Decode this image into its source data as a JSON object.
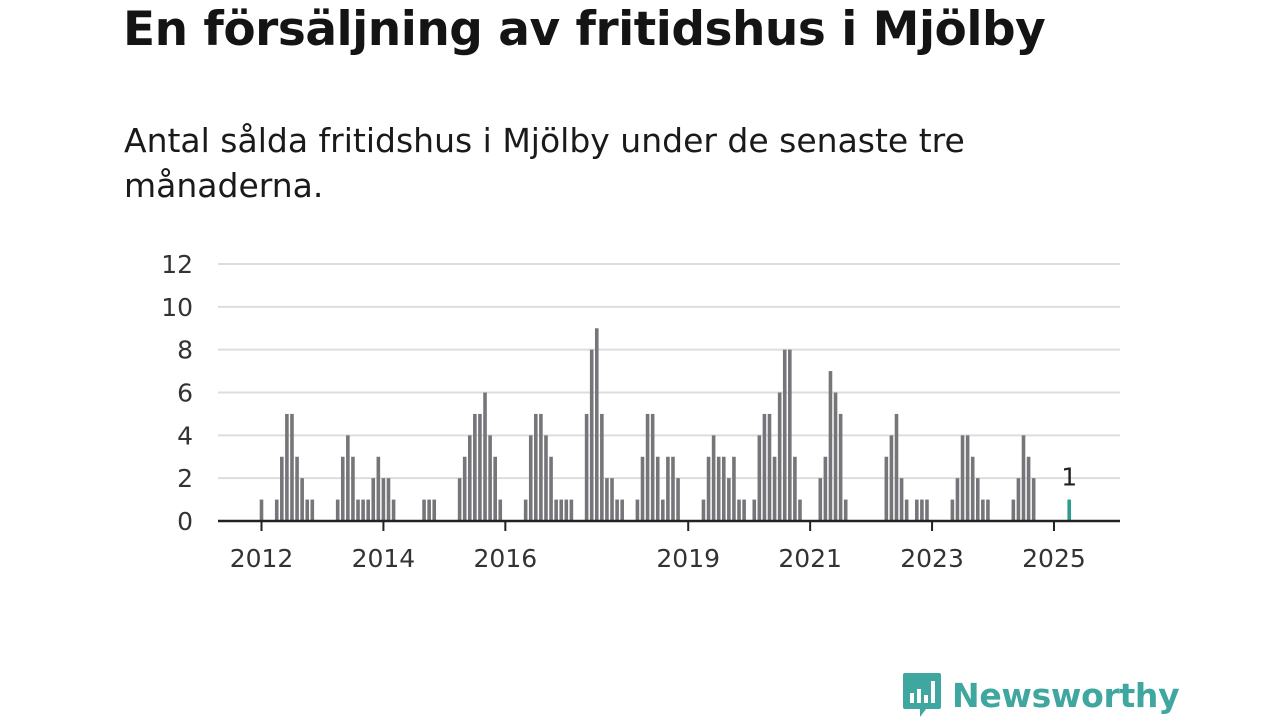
{
  "page": {
    "title": "En försäljning av fritidshus i Mjölby",
    "subtitle": "Antal sålda fritidshus i Mjölby under de senaste tre månaderna."
  },
  "logo": {
    "text": "Newsworthy",
    "icon": "newsworthy-logo-icon"
  },
  "colors": {
    "bar": "#76767a",
    "highlight": "#2a9d8f",
    "grid": "#dddddd",
    "axis": "#222222",
    "logo": "#3fa79f"
  },
  "chart_data": {
    "type": "bar",
    "title": "",
    "xlabel": "",
    "ylabel": "",
    "ylim": [
      0,
      12
    ],
    "yticks": [
      0,
      2,
      4,
      6,
      8,
      10,
      12
    ],
    "xticks": [
      {
        "label": "2012",
        "index": 0
      },
      {
        "label": "2014",
        "index": 24
      },
      {
        "label": "2016",
        "index": 48
      },
      {
        "label": "2019",
        "index": 84
      },
      {
        "label": "2021",
        "index": 108
      },
      {
        "label": "2023",
        "index": 132
      },
      {
        "label": "2025",
        "index": 156
      }
    ],
    "grid": true,
    "start_month": "2012-01",
    "end_month": "2025-04",
    "values": [
      1,
      0,
      0,
      1,
      3,
      5,
      5,
      3,
      2,
      1,
      1,
      0,
      0,
      0,
      0,
      1,
      3,
      4,
      3,
      1,
      1,
      1,
      2,
      3,
      2,
      2,
      1,
      0,
      0,
      0,
      0,
      0,
      1,
      1,
      1,
      0,
      0,
      0,
      0,
      2,
      3,
      4,
      5,
      5,
      6,
      4,
      3,
      1,
      0,
      0,
      0,
      0,
      1,
      4,
      5,
      5,
      4,
      3,
      1,
      1,
      1,
      1,
      0,
      0,
      5,
      8,
      9,
      5,
      2,
      2,
      1,
      1,
      0,
      0,
      1,
      3,
      5,
      5,
      3,
      1,
      3,
      3,
      2,
      0,
      0,
      0,
      0,
      1,
      3,
      4,
      3,
      3,
      2,
      3,
      1,
      1,
      0,
      1,
      4,
      5,
      5,
      3,
      6,
      8,
      8,
      3,
      1,
      0,
      0,
      0,
      2,
      3,
      7,
      6,
      5,
      1,
      0,
      0,
      0,
      0,
      0,
      0,
      0,
      3,
      4,
      5,
      2,
      1,
      0,
      1,
      1,
      1,
      0,
      0,
      0,
      0,
      1,
      2,
      4,
      4,
      3,
      2,
      1,
      1,
      0,
      0,
      0,
      0,
      1,
      2,
      4,
      3,
      2,
      0,
      0,
      0,
      0,
      0,
      0,
      1
    ],
    "highlight": {
      "month": "2025-04",
      "value": 1,
      "label": "1"
    }
  }
}
